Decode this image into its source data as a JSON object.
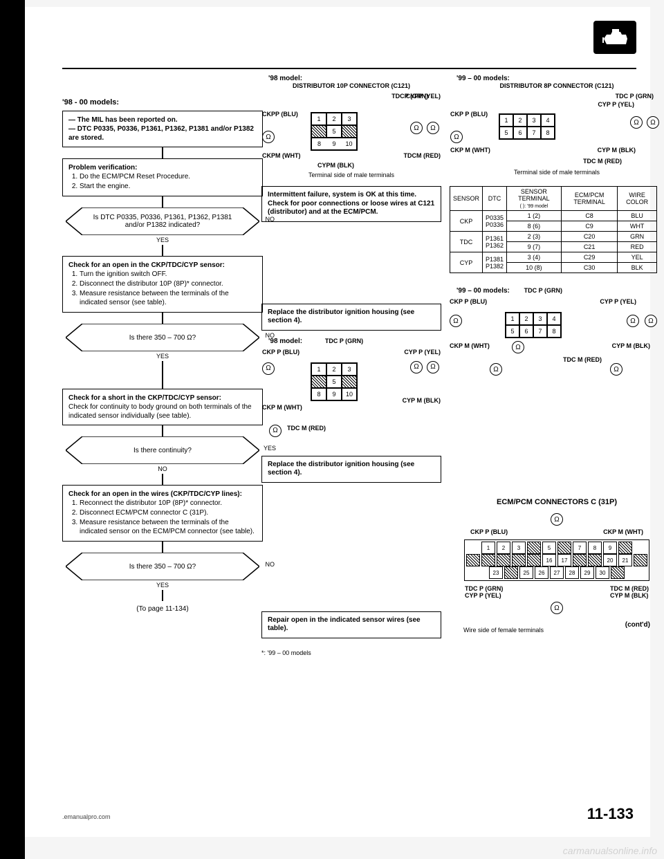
{
  "page_number": "11-133",
  "footer_url": ".emanualpro.com",
  "watermark": "carmanualsonline.info",
  "corner_icon": "engine-icon",
  "left": {
    "model_label": "'98 - 00 models:",
    "start_box_l1": "— The MIL has been reported on.",
    "start_box_l2": "— DTC P0335, P0336, P1361, P1362, P1381 and/or P1382 are stored.",
    "verify_title": "Problem verification:",
    "verify_s1": "Do the ECM/PCM Reset Procedure.",
    "verify_s2": "Start the engine.",
    "decision1": "Is DTC P0335, P0336, P1361, P1362, P1381 and/or P1382 indicated?",
    "no1": "NO",
    "yes1": "YES",
    "open_check_title": "Check for an open in the CKP/TDC/CYP sensor:",
    "open_s1": "Turn the ignition switch OFF.",
    "open_s2": "Disconnect the distributor 10P (8P)* connector.",
    "open_s3": "Measure resistance between the terminals of the indicated sensor (see table).",
    "decision2": "Is there 350 – 700 Ω?",
    "no2": "NO",
    "yes2": "YES",
    "short_check_title": "Check for a short in the CKP/TDC/CYP sensor:",
    "short_body": "Check for continuity to body ground on both terminals of the indicated sensor individually (see table).",
    "decision3": "Is there continuity?",
    "yes3": "YES",
    "no3": "NO",
    "wires_check_title": "Check for an open in the wires (CKP/TDC/CYP lines):",
    "wires_s1": "Reconnect the distributor 10P (8P)* connector.",
    "wires_s2": "Disconnect ECM/PCM connector C (31P).",
    "wires_s3": "Measure resistance between the terminals of the indicated sensor on the ECM/PCM connector (see table).",
    "decision4": "Is there 350 – 700 Ω?",
    "no4": "NO",
    "yes4": "YES",
    "to_page": "(To page 11-134)"
  },
  "mid": {
    "h98": "'98 model:",
    "dist_title": "DISTRIBUTOR 10P CONNECTOR (C121)",
    "tdcp": "TDCP (GRN)",
    "cypp": "CYPP (YEL)",
    "ckpp": "CKPP (BLU)",
    "ckpm": "CKPM (WHT)",
    "tdcm": "TDCM (RED)",
    "cypm": "CYPM (BLK)",
    "terminal_note": "Terminal side of male terminals",
    "intermittent": "Intermittent failure, system is OK at this time. Check for poor connections or loose wires at C121 (distributor) and at the ECM/PCM.",
    "action_replace2": "Replace the distributor ignition housing (see section 4).",
    "h98b": "'98 model:",
    "tdcp2": "TDC P (GRN)",
    "ckpp2": "CKP P (BLU)",
    "cypp2": "CYP P (YEL)",
    "ckpm2": "CKP M (WHT)",
    "cypm2": "CYP M (BLK)",
    "tdcm2": "TDC M (RED)",
    "action_replace3": "Replace the distributor ignition housing (see section 4).",
    "action_repair": "Repair open in the indicated sensor wires (see table).",
    "footnote": "*: '99 – 00 models"
  },
  "right": {
    "h99": "'99 – 00 models:",
    "dist_title": "DISTRIBUTOR 8P CONNECTOR (C121)",
    "tdcp": "TDC P (GRN)",
    "cypp": "CYP P (YEL)",
    "ckpp": "CKP P (BLU)",
    "ckpm": "CKP M (WHT)",
    "cypm": "CYP M (BLK)",
    "tdcm": "TDC M (RED)",
    "terminal_note": "Terminal side of male terminals",
    "table": {
      "h_sensor": "SENSOR",
      "h_dtc": "DTC",
      "h_sterm": "SENSOR TERMINAL",
      "h_sterm_note": "( ): '99 model",
      "h_ecm": "ECM/PCM TERMINAL",
      "h_wire": "WIRE COLOR",
      "rows": [
        [
          "CKP",
          "P0335",
          "1 (2)",
          "C8",
          "BLU"
        ],
        [
          "",
          "P0336",
          "8 (6)",
          "C9",
          "WHT"
        ],
        [
          "TDC",
          "P1361",
          "2 (3)",
          "C20",
          "GRN"
        ],
        [
          "",
          "P1362",
          "9 (7)",
          "C21",
          "RED"
        ],
        [
          "CYP",
          "P1381",
          "3 (4)",
          "C29",
          "YEL"
        ],
        [
          "",
          "P1382",
          "10 (8)",
          "C30",
          "BLK"
        ]
      ]
    },
    "h99b": "'99 – 00 models:",
    "tdcp2": "TDC P (GRN)",
    "ckpp2": "CKP P (BLU)",
    "cypp2": "CYP P (YEL)",
    "ckpm2": "CKP M (WHT)",
    "cypm2": "CYP M (BLK)",
    "tdcm2": "TDC M (RED)",
    "ecm_title": "ECM/PCM CONNECTORS C (31P)",
    "ecm_ckpp": "CKP P (BLU)",
    "ecm_ckpm": "CKP M (WHT)",
    "ecm_tdcp": "TDC P (GRN)",
    "ecm_cypp": "CYP P (YEL)",
    "ecm_tdcm": "TDC M (RED)",
    "ecm_cypm": "CYP M (BLK)",
    "wire_note": "Wire side of female terminals",
    "contd": "(cont'd)",
    "ecm_row1": [
      "1",
      "2",
      "3",
      "",
      "5",
      "",
      "7",
      "8",
      "9",
      ""
    ],
    "ecm_row2": [
      "",
      "",
      "",
      "",
      "",
      "16",
      "17",
      "",
      "",
      "20",
      "21",
      ""
    ],
    "ecm_row3": [
      "23",
      "",
      "25",
      "26",
      "27",
      "28",
      "29",
      "30",
      ""
    ]
  }
}
